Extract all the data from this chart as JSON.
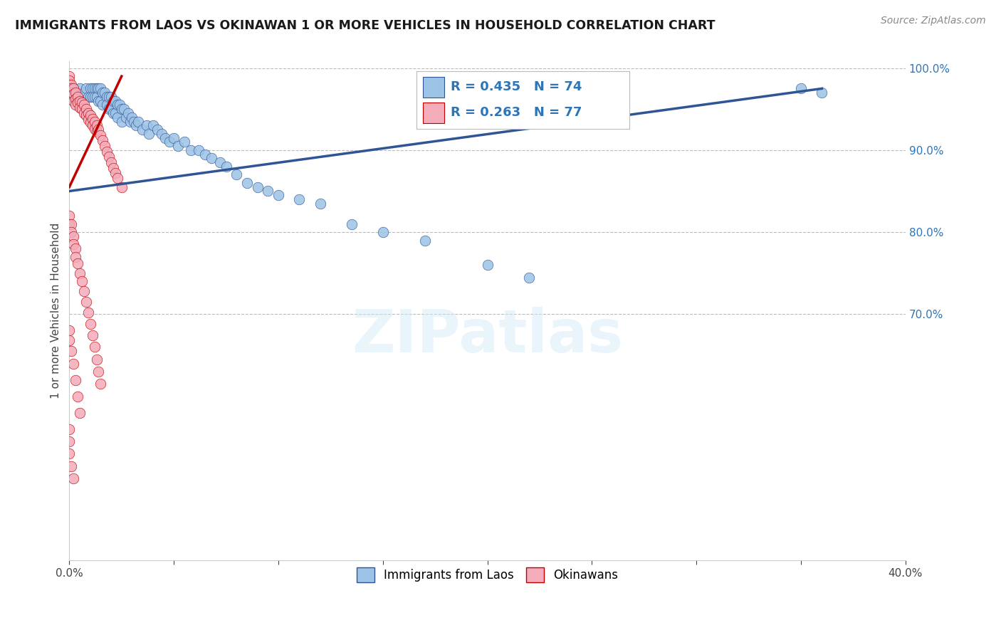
{
  "title": "IMMIGRANTS FROM LAOS VS OKINAWAN 1 OR MORE VEHICLES IN HOUSEHOLD CORRELATION CHART",
  "source": "Source: ZipAtlas.com",
  "ylabel": "1 or more Vehicles in Household",
  "xlim": [
    0.0,
    0.4
  ],
  "ylim": [
    0.4,
    1.008
  ],
  "xticks": [
    0.0,
    0.05,
    0.1,
    0.15,
    0.2,
    0.25,
    0.3,
    0.35,
    0.4
  ],
  "xticklabels": [
    "0.0%",
    "",
    "",
    "",
    "",
    "",
    "",
    "",
    "40.0%"
  ],
  "yticks_right": [
    0.7,
    0.8,
    0.9,
    1.0
  ],
  "yticklabels_right": [
    "70.0%",
    "80.0%",
    "90.0%",
    "100.0%"
  ],
  "legend_blue_label": "R = 0.435   N = 74",
  "legend_pink_label": "R = 0.263   N = 77",
  "legend_blue_series": "Immigrants from Laos",
  "legend_pink_series": "Okinawans",
  "blue_color": "#9DC3E6",
  "pink_color": "#F4ABBA",
  "blue_line_color": "#2F5597",
  "pink_line_color": "#C00000",
  "right_axis_color": "#2F75B6",
  "grid_color": "#BBBBBB",
  "watermark": "ZIPatlas",
  "blue_x": [
    0.003,
    0.005,
    0.007,
    0.008,
    0.009,
    0.01,
    0.01,
    0.011,
    0.011,
    0.012,
    0.012,
    0.013,
    0.013,
    0.014,
    0.014,
    0.015,
    0.015,
    0.016,
    0.016,
    0.017,
    0.018,
    0.018,
    0.019,
    0.019,
    0.02,
    0.02,
    0.021,
    0.021,
    0.022,
    0.022,
    0.023,
    0.023,
    0.024,
    0.025,
    0.025,
    0.026,
    0.027,
    0.028,
    0.029,
    0.03,
    0.031,
    0.032,
    0.033,
    0.035,
    0.037,
    0.038,
    0.04,
    0.042,
    0.044,
    0.046,
    0.048,
    0.05,
    0.052,
    0.055,
    0.058,
    0.062,
    0.065,
    0.068,
    0.072,
    0.075,
    0.08,
    0.085,
    0.09,
    0.095,
    0.1,
    0.11,
    0.12,
    0.135,
    0.15,
    0.17,
    0.2,
    0.22,
    0.35,
    0.36
  ],
  "blue_y": [
    0.97,
    0.975,
    0.97,
    0.975,
    0.965,
    0.975,
    0.965,
    0.975,
    0.965,
    0.975,
    0.965,
    0.975,
    0.965,
    0.975,
    0.96,
    0.975,
    0.96,
    0.97,
    0.955,
    0.97,
    0.965,
    0.955,
    0.965,
    0.95,
    0.965,
    0.95,
    0.96,
    0.945,
    0.96,
    0.945,
    0.955,
    0.94,
    0.955,
    0.95,
    0.935,
    0.95,
    0.94,
    0.945,
    0.935,
    0.94,
    0.935,
    0.93,
    0.935,
    0.925,
    0.93,
    0.92,
    0.93,
    0.925,
    0.92,
    0.915,
    0.91,
    0.915,
    0.905,
    0.91,
    0.9,
    0.9,
    0.895,
    0.89,
    0.885,
    0.88,
    0.87,
    0.86,
    0.855,
    0.85,
    0.845,
    0.84,
    0.835,
    0.81,
    0.8,
    0.79,
    0.76,
    0.745,
    0.975,
    0.97
  ],
  "pink_x": [
    0.0,
    0.0,
    0.0,
    0.0,
    0.001,
    0.001,
    0.001,
    0.001,
    0.002,
    0.002,
    0.002,
    0.003,
    0.003,
    0.003,
    0.004,
    0.004,
    0.005,
    0.005,
    0.006,
    0.006,
    0.007,
    0.007,
    0.008,
    0.008,
    0.009,
    0.009,
    0.01,
    0.01,
    0.011,
    0.011,
    0.012,
    0.012,
    0.013,
    0.013,
    0.014,
    0.015,
    0.016,
    0.017,
    0.018,
    0.019,
    0.02,
    0.021,
    0.022,
    0.023,
    0.025,
    0.0,
    0.0,
    0.001,
    0.001,
    0.002,
    0.002,
    0.003,
    0.003,
    0.004,
    0.005,
    0.006,
    0.007,
    0.008,
    0.009,
    0.01,
    0.011,
    0.012,
    0.013,
    0.014,
    0.015,
    0.0,
    0.0,
    0.001,
    0.002,
    0.003,
    0.004,
    0.005,
    0.0,
    0.0,
    0.0,
    0.001,
    0.002
  ],
  "pink_y": [
    0.99,
    0.985,
    0.98,
    0.975,
    0.98,
    0.975,
    0.97,
    0.965,
    0.975,
    0.968,
    0.96,
    0.97,
    0.962,
    0.955,
    0.965,
    0.958,
    0.96,
    0.952,
    0.958,
    0.95,
    0.955,
    0.945,
    0.95,
    0.942,
    0.945,
    0.937,
    0.942,
    0.934,
    0.938,
    0.93,
    0.935,
    0.926,
    0.93,
    0.922,
    0.925,
    0.918,
    0.912,
    0.905,
    0.898,
    0.892,
    0.885,
    0.878,
    0.872,
    0.866,
    0.855,
    0.82,
    0.81,
    0.81,
    0.8,
    0.795,
    0.785,
    0.78,
    0.77,
    0.762,
    0.75,
    0.74,
    0.728,
    0.715,
    0.702,
    0.688,
    0.674,
    0.66,
    0.645,
    0.63,
    0.615,
    0.68,
    0.668,
    0.655,
    0.64,
    0.62,
    0.6,
    0.58,
    0.56,
    0.545,
    0.53,
    0.515,
    0.5
  ],
  "blue_trend": [
    0.0,
    0.36,
    0.85,
    0.975
  ],
  "pink_trend": [
    0.0,
    0.025,
    0.855,
    0.99
  ]
}
